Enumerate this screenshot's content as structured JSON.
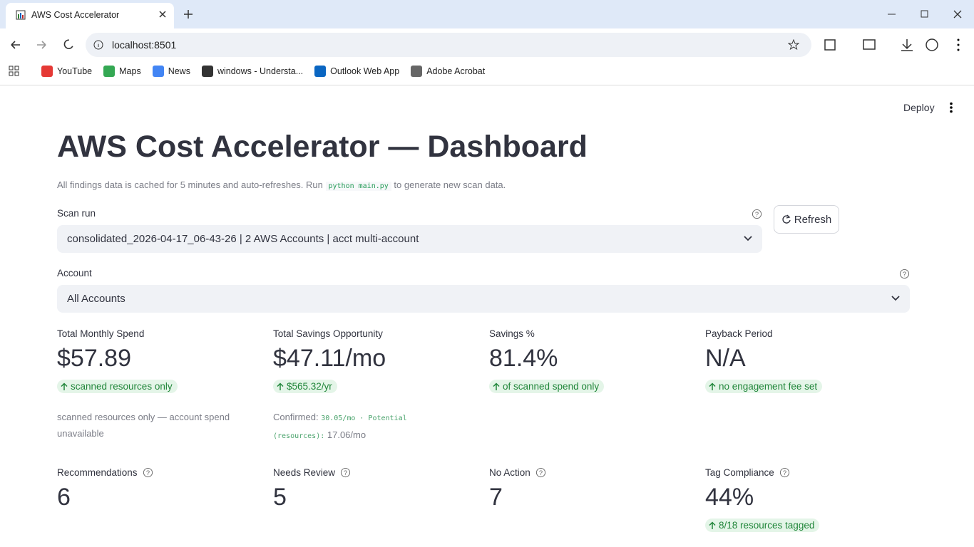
{
  "browser": {
    "tab_title": "AWS Cost Accelerator",
    "url": "localhost:8501",
    "bookmarks": [
      "YouTube",
      "Maps",
      "News",
      "windows - Understa...",
      "Outlook Web App",
      "Adobe Acrobat"
    ]
  },
  "app": {
    "deploy": "Deploy",
    "title": "AWS Cost Accelerator — Dashboard",
    "caption": {
      "before": "All findings data is cached for 5 minutes and auto-refreshes. Run",
      "code": "python main.py",
      "after": "to generate new scan data."
    },
    "scan_run": {
      "label": "Scan run",
      "value": "consolidated_2026-04-17_06-43-26 | 2 AWS Accounts | acct multi-account"
    },
    "refresh": "Refresh",
    "account": {
      "label": "Account",
      "value": "All Accounts"
    },
    "metrics": [
      {
        "label": "Total Monthly Spend",
        "value": "$57.89",
        "delta": "scanned resources only",
        "note": [
          "scanned resources only — account spend unavailable"
        ]
      },
      {
        "label": "Total Savings Opportunity",
        "value": "$47.11/mo",
        "delta": "$565.32/yr",
        "note": [
          "Confirmed:",
          "30.05/mo · Potential (resources):",
          "17.06/mo"
        ]
      },
      {
        "label": "Savings %",
        "value": "81.4%",
        "delta": "of scanned spend only"
      },
      {
        "label": "Payback Period",
        "value": "N/A",
        "delta": "no engagement fee set"
      }
    ],
    "counts": [
      {
        "label": "Recommendations",
        "value": 6
      },
      {
        "label": "Needs Review",
        "value": 5
      },
      {
        "label": "No Action",
        "value": 7
      },
      {
        "label": "Tag Compliance",
        "value": "44%",
        "delta": "8/18 resources tagged"
      }
    ]
  }
}
